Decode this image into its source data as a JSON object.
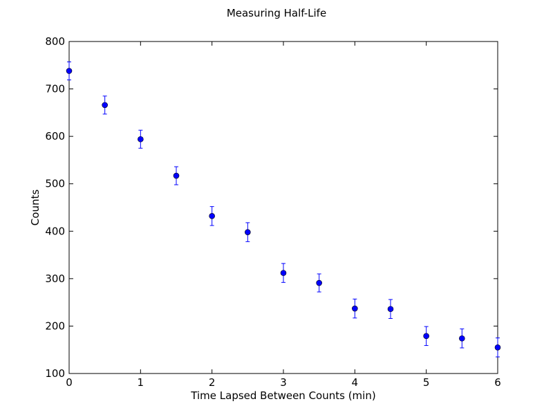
{
  "chart_data": {
    "type": "scatter",
    "title": "Measuring Half-Life",
    "xlabel": "Time Lapsed Between Counts (min)",
    "ylabel": "Counts",
    "xlim": [
      0,
      6
    ],
    "ylim": [
      100,
      800
    ],
    "xticks": [
      0,
      1,
      2,
      3,
      4,
      5,
      6
    ],
    "yticks": [
      100,
      200,
      300,
      400,
      500,
      600,
      700,
      800
    ],
    "grid": false,
    "legend": false,
    "marker_color": "#0000ff",
    "series": [
      {
        "x": [
          0,
          0.5,
          1,
          1.5,
          2,
          2.5,
          3,
          3.5,
          4,
          4.5,
          5,
          5.5,
          6
        ],
        "y": [
          738,
          666,
          594,
          517,
          432,
          398,
          312,
          291,
          237,
          236,
          179,
          174,
          155
        ],
        "yerr": [
          19,
          19,
          19,
          19,
          20,
          20,
          20,
          19,
          20,
          20,
          20,
          20,
          20
        ]
      }
    ]
  }
}
